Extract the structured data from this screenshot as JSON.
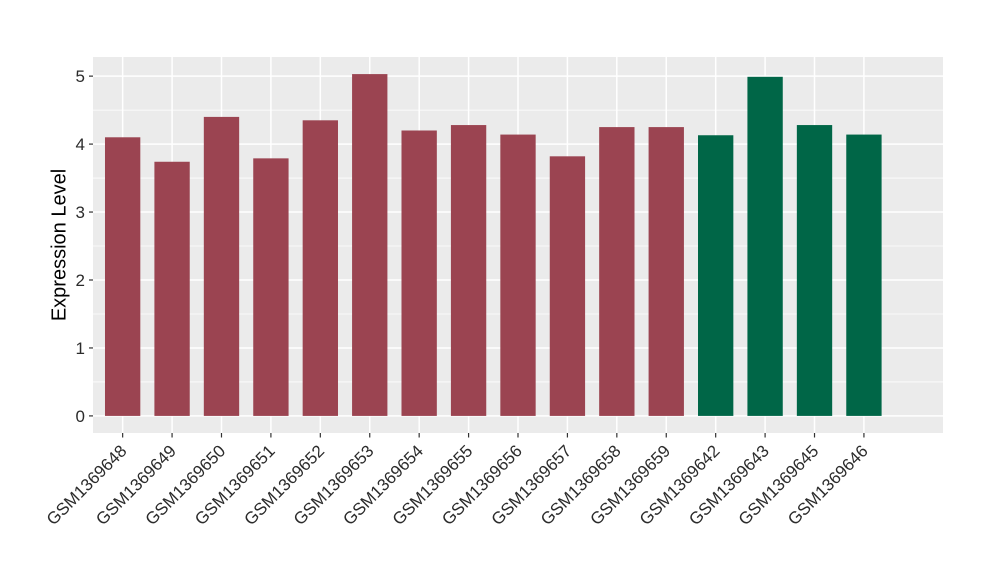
{
  "page": {
    "background_color": "#FFFFFF"
  },
  "chart_data": {
    "type": "bar",
    "title": "",
    "xlabel": "",
    "ylabel": "Expression Level",
    "legend_position": "none",
    "grid": true,
    "panel_bg": "#EBEBEB",
    "grid_color": "#FFFFFF",
    "tick_color": "#333333",
    "tick_label_color": "#2b2b2b",
    "ylim": [
      0,
      5.28
    ],
    "y_ticks": [
      0,
      1,
      2,
      3,
      4,
      5
    ],
    "y_minor_ticks": [
      0.5,
      1.5,
      2.5,
      3.5,
      4.5
    ],
    "palette": {
      "maroon": "#9B4451",
      "green": "#006647"
    },
    "categories": [
      "GSM1369648",
      "GSM1369649",
      "GSM1369650",
      "GSM1369651",
      "GSM1369652",
      "GSM1369653",
      "GSM1369654",
      "GSM1369655",
      "GSM1369656",
      "GSM1369657",
      "GSM1369658",
      "GSM1369659",
      "GSM1369642",
      "GSM1369643",
      "GSM1369645",
      "GSM1369646"
    ],
    "values": [
      4.1,
      3.74,
      4.4,
      3.79,
      4.35,
      5.03,
      4.2,
      4.28,
      4.14,
      3.82,
      4.25,
      4.25,
      4.13,
      4.99,
      4.28,
      4.14
    ],
    "bar_colors": [
      "#9B4451",
      "#9B4451",
      "#9B4451",
      "#9B4451",
      "#9B4451",
      "#9B4451",
      "#9B4451",
      "#9B4451",
      "#9B4451",
      "#9B4451",
      "#9B4451",
      "#9B4451",
      "#006647",
      "#006647",
      "#006647",
      "#006647"
    ]
  }
}
